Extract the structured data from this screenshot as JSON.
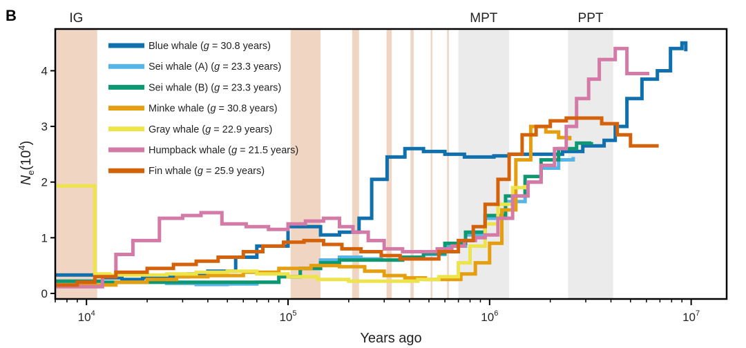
{
  "chart_data": {
    "type": "line",
    "panel_label": "B",
    "xlabel": "Years ago",
    "ylabel_main": "N",
    "ylabel_sub": "e",
    "ylabel_paren": "(10",
    "ylabel_exp": "4",
    "ylabel_close": ")",
    "x_scale": "log",
    "xlim": [
      7000,
      15000000
    ],
    "ylim": [
      -0.1,
      4.75
    ],
    "x_ticks": [
      {
        "value": 10000,
        "base": "10",
        "exp": "4"
      },
      {
        "value": 100000,
        "base": "10",
        "exp": "5"
      },
      {
        "value": 1000000,
        "base": "10",
        "exp": "6"
      },
      {
        "value": 10000000,
        "base": "10",
        "exp": "7"
      }
    ],
    "y_ticks": [
      {
        "value": 0,
        "label": "0"
      },
      {
        "value": 1,
        "label": "1"
      },
      {
        "value": 2,
        "label": "2"
      },
      {
        "value": 3,
        "label": "3"
      },
      {
        "value": 4,
        "label": "4"
      }
    ],
    "shaded_regions": [
      {
        "type": "interglacial",
        "from": 7000,
        "to": 11300,
        "label": "IG"
      },
      {
        "type": "interglacial",
        "from": 103000,
        "to": 145000
      },
      {
        "type": "interglacial",
        "from": 208000,
        "to": 225000
      },
      {
        "type": "interglacial",
        "from": 308000,
        "to": 327000
      },
      {
        "type": "interglacial",
        "from": 405000,
        "to": 420000
      },
      {
        "type": "interglacial",
        "from": 510000,
        "to": 520000
      },
      {
        "type": "interglacial",
        "from": 615000,
        "to": 628000
      },
      {
        "type": "transition",
        "from": 700000,
        "to": 1250000,
        "label": "MPT"
      },
      {
        "type": "transition",
        "from": 2450000,
        "to": 4100000,
        "label": "PPT"
      }
    ],
    "colors": {
      "interglacial": "#f0d5c3",
      "transition": "#ebebeb",
      "axis": "#000000"
    },
    "series": [
      {
        "name": "Blue whale",
        "gen_time": "30.8 years",
        "color": "#0f70ad",
        "x": [
          7000,
          12500,
          15000,
          19000,
          24000,
          32000,
          40000,
          55000,
          70000,
          100000,
          145000,
          180000,
          225000,
          260000,
          310000,
          380000,
          470000,
          600000,
          750000,
          900000,
          1050000,
          1250000,
          1500000,
          1850000,
          2300000,
          2900000,
          3700000,
          4200000,
          4800000,
          5700000,
          6800000,
          7900000,
          9000000,
          9400000
        ],
        "y": [
          0.33,
          0.28,
          0.25,
          0.28,
          0.3,
          0.35,
          0.4,
          0.65,
          0.85,
          1.2,
          1.05,
          1.1,
          1.35,
          2.05,
          2.45,
          2.6,
          2.55,
          2.5,
          2.45,
          2.45,
          2.47,
          2.5,
          2.5,
          2.5,
          2.55,
          2.65,
          2.75,
          3.0,
          3.5,
          3.85,
          4.0,
          4.4,
          4.5,
          4.35
        ]
      },
      {
        "name": "Sei whale (A)",
        "gen_time": "23.3 years",
        "color": "#56b4e6",
        "x": [
          7000,
          9000,
          12000,
          17000,
          25000,
          35000,
          50000,
          70000,
          90000,
          115000,
          145000,
          180000,
          230000,
          290000,
          370000,
          470000,
          600000,
          760000,
          950000,
          1200000,
          1500000,
          1800000,
          2200000,
          2600000
        ],
        "y": [
          0.22,
          0.22,
          0.2,
          0.2,
          0.18,
          0.16,
          0.17,
          0.2,
          0.3,
          0.45,
          0.6,
          0.65,
          0.62,
          0.6,
          0.62,
          0.7,
          0.85,
          1.05,
          1.35,
          1.65,
          2.0,
          2.25,
          2.4,
          2.45
        ]
      },
      {
        "name": "Sei whale (B)",
        "gen_time": "23.3 years",
        "color": "#0d9871",
        "x": [
          7000,
          9000,
          12000,
          17000,
          25000,
          35000,
          50000,
          70000,
          90000,
          115000,
          145000,
          180000,
          230000,
          290000,
          370000,
          470000,
          600000,
          760000,
          950000,
          1200000,
          1500000,
          1800000,
          2200000,
          2700000,
          3200000
        ],
        "y": [
          0.22,
          0.22,
          0.2,
          0.2,
          0.2,
          0.2,
          0.2,
          0.2,
          0.3,
          0.45,
          0.55,
          0.6,
          0.6,
          0.6,
          0.65,
          0.72,
          0.9,
          1.1,
          1.4,
          1.75,
          2.1,
          2.4,
          2.6,
          2.7,
          2.72
        ]
      },
      {
        "name": "Minke whale",
        "gen_time": "30.8 years",
        "color": "#e59e0d",
        "x": [
          7000,
          10000,
          14000,
          20000,
          28000,
          40000,
          60000,
          90000,
          130000,
          180000,
          240000,
          300000,
          380000,
          480000,
          600000,
          720000,
          850000,
          1000000,
          1150000,
          1350000,
          1600000,
          1900000,
          2200000,
          2500000
        ],
        "y": [
          0.15,
          0.15,
          0.2,
          0.25,
          0.3,
          0.32,
          0.38,
          0.45,
          0.5,
          0.48,
          0.4,
          0.32,
          0.28,
          0.25,
          0.25,
          0.35,
          0.55,
          0.9,
          1.5,
          2.4,
          3.0,
          2.9,
          2.8,
          2.75
        ]
      },
      {
        "name": "Gray whale",
        "gen_time": "22.9 years",
        "color": "#ede34a",
        "x": [
          7000,
          11000,
          13000,
          18000,
          25000,
          35000,
          50000,
          70000,
          100000,
          140000,
          200000,
          260000,
          340000,
          440000,
          560000,
          700000,
          800000,
          950000,
          1100000,
          1300000,
          1500000
        ],
        "y": [
          1.93,
          0.35,
          0.33,
          0.33,
          0.35,
          0.38,
          0.4,
          0.35,
          0.3,
          0.25,
          0.22,
          0.22,
          0.22,
          0.25,
          0.3,
          0.55,
          0.85,
          1.25,
          1.6,
          1.9,
          1.95
        ]
      },
      {
        "name": "Humpback whale",
        "gen_time": "21.5 years",
        "color": "#d47aa7",
        "x": [
          7000,
          10000,
          12000,
          14000,
          17000,
          23000,
          30000,
          37000,
          47000,
          62000,
          80000,
          100000,
          122000,
          150000,
          180000,
          210000,
          250000,
          300000,
          370000,
          450000,
          550000,
          650000,
          750000,
          850000,
          950000,
          1100000,
          1300000,
          1550000,
          1800000,
          2100000,
          2400000,
          2700000,
          3100000,
          3500000,
          4200000,
          4800000,
          5500000,
          6200000
        ],
        "y": [
          0.12,
          0.12,
          0.3,
          0.7,
          0.95,
          1.35,
          1.4,
          1.45,
          1.25,
          1.2,
          1.15,
          1.25,
          1.3,
          1.35,
          1.2,
          1.1,
          0.95,
          0.8,
          0.75,
          0.75,
          0.8,
          0.85,
          0.95,
          1.0,
          1.05,
          1.35,
          1.75,
          2.0,
          2.3,
          2.6,
          3.0,
          3.5,
          3.85,
          4.2,
          4.4,
          3.95,
          3.95,
          3.95
        ]
      },
      {
        "name": "Fin whale",
        "gen_time": "25.9 years",
        "color": "#d4620b",
        "x": [
          7000,
          9000,
          11000,
          14000,
          20000,
          27000,
          35000,
          45000,
          60000,
          75000,
          95000,
          120000,
          150000,
          185000,
          230000,
          290000,
          360000,
          450000,
          560000,
          700000,
          830000,
          950000,
          1100000,
          1250000,
          1450000,
          1700000,
          2000000,
          2400000,
          2900000,
          3600000,
          4300000,
          5000000,
          6900000
        ],
        "y": [
          0.15,
          0.2,
          0.3,
          0.38,
          0.45,
          0.52,
          0.58,
          0.65,
          0.75,
          0.85,
          0.92,
          0.95,
          0.88,
          0.8,
          0.75,
          0.68,
          0.62,
          0.62,
          0.75,
          0.95,
          1.2,
          1.6,
          2.05,
          2.5,
          2.85,
          3.0,
          3.1,
          3.15,
          3.15,
          3.05,
          2.85,
          2.65,
          2.65
        ]
      }
    ]
  }
}
